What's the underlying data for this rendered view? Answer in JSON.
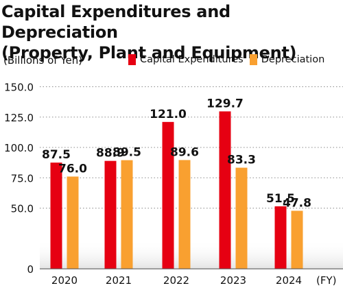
{
  "chart_data": {
    "type": "bar",
    "title_line1": "Capital Expenditures and Depreciation",
    "title_line2": "(Property, Plant and Equipment)",
    "ylabel": "(Billions of Yen)",
    "xlabel": "(FY)",
    "categories": [
      "2020",
      "2021",
      "2022",
      "2023",
      "2024"
    ],
    "series": [
      {
        "name": "Capital Expenditures",
        "color": "#e60012",
        "values": [
          87.5,
          88.9,
          121.0,
          129.7,
          51.5
        ]
      },
      {
        "name": "Depreciation",
        "color": "#f9a030",
        "values": [
          76.0,
          89.5,
          89.6,
          83.3,
          47.8
        ]
      }
    ],
    "ylim": [
      0,
      150
    ],
    "yticks": [
      "0",
      "50.0",
      "75.0",
      "100.0",
      "125.0",
      "150.0"
    ],
    "ytick_values": [
      0,
      50,
      75,
      100,
      125,
      150
    ],
    "grid": true,
    "legend": "top-right",
    "data_labels": true
  }
}
